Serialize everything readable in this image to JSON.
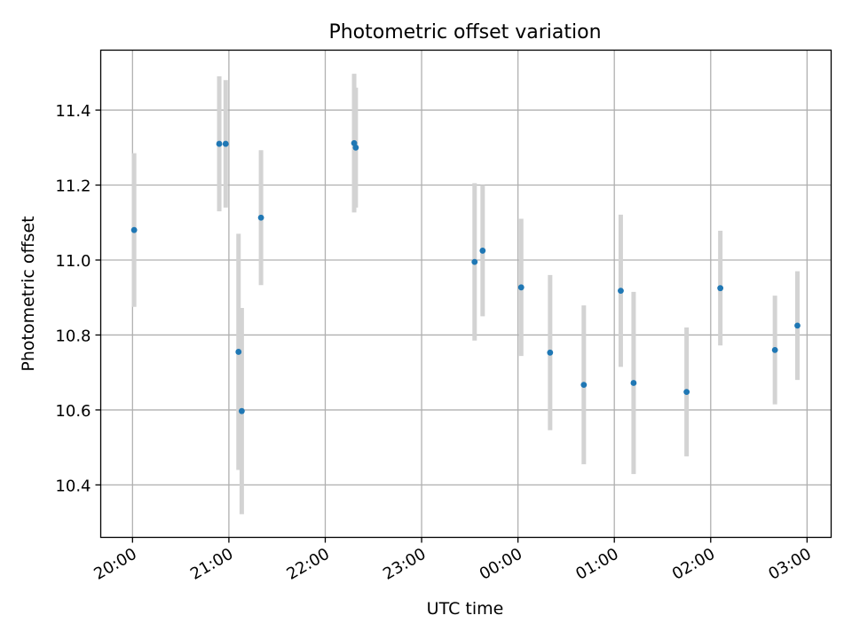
{
  "chart_data": {
    "type": "scatter",
    "title": "Photometric offset variation",
    "xlabel": "UTC time",
    "ylabel": "Photometric offset",
    "x_tick_labels": [
      "20:00",
      "21:00",
      "22:00",
      "23:00",
      "00:00",
      "01:00",
      "02:00",
      "03:00"
    ],
    "x_ticks_hours": [
      20,
      21,
      22,
      23,
      24,
      25,
      26,
      27
    ],
    "xlim_hours": [
      19.67,
      27.25
    ],
    "y_tick_labels": [
      "10.4",
      "10.6",
      "10.8",
      "11.0",
      "11.2",
      "11.4"
    ],
    "y_ticks": [
      10.4,
      10.6,
      10.8,
      11.0,
      11.2,
      11.4
    ],
    "ylim": [
      10.26,
      11.56
    ],
    "grid": true,
    "marker_color": "#1f77b4",
    "errorbar_color": "#d3d3d3",
    "points": [
      {
        "time": "20:01",
        "y": 11.08,
        "err": 0.205
      },
      {
        "time": "20:54",
        "y": 11.31,
        "err": 0.18
      },
      {
        "time": "20:58",
        "y": 11.31,
        "err": 0.17
      },
      {
        "time": "21:06",
        "y": 10.755,
        "err": 0.315
      },
      {
        "time": "21:08",
        "y": 10.597,
        "err": 0.275
      },
      {
        "time": "21:20",
        "y": 11.113,
        "err": 0.18
      },
      {
        "time": "22:18",
        "y": 11.312,
        "err": 0.185
      },
      {
        "time": "22:19",
        "y": 11.3,
        "err": 0.16
      },
      {
        "time": "23:33",
        "y": 10.995,
        "err": 0.21
      },
      {
        "time": "23:38",
        "y": 11.025,
        "err": 0.175
      },
      {
        "time": "00:02",
        "y": 10.927,
        "err": 0.183
      },
      {
        "time": "00:20",
        "y": 10.753,
        "err": 0.207
      },
      {
        "time": "00:41",
        "y": 10.667,
        "err": 0.212
      },
      {
        "time": "01:04",
        "y": 10.918,
        "err": 0.203
      },
      {
        "time": "01:12",
        "y": 10.672,
        "err": 0.243
      },
      {
        "time": "01:45",
        "y": 10.648,
        "err": 0.172
      },
      {
        "time": "02:06",
        "y": 10.925,
        "err": 0.153
      },
      {
        "time": "02:40",
        "y": 10.76,
        "err": 0.145
      },
      {
        "time": "02:54",
        "y": 10.825,
        "err": 0.145
      }
    ]
  }
}
